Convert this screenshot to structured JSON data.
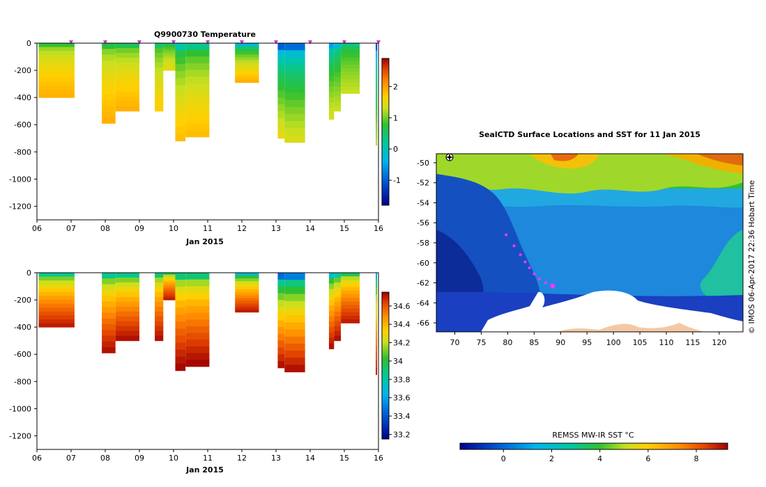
{
  "temperature_section": {
    "chart_data": {
      "type": "heatmap",
      "title": "Q9900730  Temperature",
      "xlabel": "Jan 2015",
      "x_ticks": [
        "06",
        "07",
        "08",
        "09",
        "10",
        "11",
        "12",
        "13",
        "14",
        "15",
        "16"
      ],
      "xlim": [
        6,
        16
      ],
      "y_ticks": [
        0,
        -200,
        -400,
        -600,
        -800,
        -1000,
        -1200
      ],
      "ylim": [
        -1300,
        0
      ],
      "colorbar": {
        "ticks": [
          2,
          1,
          0,
          -1
        ],
        "range": [
          -1.8,
          2.9
        ]
      },
      "profile_markers_day": [
        7.0,
        8.0,
        9.0,
        10.0,
        11.0,
        12.0,
        13.0,
        14.0,
        15.0,
        16.0
      ],
      "profiles": [
        {
          "start": 6.05,
          "end": 7.1,
          "depth": 400,
          "surface": 0.8,
          "deep": 1.9
        },
        {
          "start": 7.9,
          "end": 8.3,
          "depth": 590,
          "surface": 0.7,
          "deep": 1.9
        },
        {
          "start": 8.3,
          "end": 9.0,
          "depth": 500,
          "surface": 0.6,
          "deep": 1.9
        },
        {
          "start": 9.45,
          "end": 9.7,
          "depth": 500,
          "surface": 0.5,
          "deep": 1.7
        },
        {
          "start": 9.7,
          "end": 10.05,
          "depth": 200,
          "surface": 0.4,
          "deep": 1.5
        },
        {
          "start": 10.05,
          "end": 10.35,
          "depth": 720,
          "surface": 0.1,
          "deep": 1.8
        },
        {
          "start": 10.35,
          "end": 11.05,
          "depth": 690,
          "surface": 0.3,
          "deep": 1.8
        },
        {
          "start": 11.8,
          "end": 12.5,
          "depth": 290,
          "surface": -0.3,
          "deep": 1.9
        },
        {
          "start": 13.05,
          "end": 13.25,
          "depth": 700,
          "surface": -1.0,
          "deep": 1.5
        },
        {
          "start": 13.25,
          "end": 13.85,
          "depth": 730,
          "surface": -0.9,
          "deep": 1.4
        },
        {
          "start": 14.55,
          "end": 14.7,
          "depth": 560,
          "surface": -0.5,
          "deep": 1.4
        },
        {
          "start": 14.7,
          "end": 14.9,
          "depth": 500,
          "surface": -0.2,
          "deep": 1.3
        },
        {
          "start": 14.9,
          "end": 15.45,
          "depth": 370,
          "surface": 0.3,
          "deep": 1.3
        },
        {
          "start": 15.92,
          "end": 15.96,
          "depth": 750,
          "surface": -1.2,
          "deep": 1.2
        }
      ]
    }
  },
  "salinity_section": {
    "chart_data": {
      "type": "heatmap",
      "title": "",
      "xlabel": "Jan 2015",
      "x_ticks": [
        "06",
        "07",
        "08",
        "09",
        "10",
        "11",
        "12",
        "13",
        "14",
        "15",
        "16"
      ],
      "xlim": [
        6,
        16
      ],
      "y_ticks": [
        0,
        -200,
        -400,
        -600,
        -800,
        -1000,
        -1200
      ],
      "ylim": [
        -1300,
        0
      ],
      "colorbar": {
        "ticks": [
          34.6,
          34.4,
          34.2,
          34,
          33.8,
          33.6,
          33.4,
          33.2
        ],
        "range": [
          33.15,
          34.75
        ]
      },
      "profiles": [
        {
          "start": 6.05,
          "end": 7.1,
          "depth": 400,
          "surface": 33.85,
          "deep": 34.7
        },
        {
          "start": 7.9,
          "end": 8.3,
          "depth": 590,
          "surface": 33.85,
          "deep": 34.72
        },
        {
          "start": 8.3,
          "end": 9.0,
          "depth": 500,
          "surface": 33.85,
          "deep": 34.72
        },
        {
          "start": 9.45,
          "end": 9.7,
          "depth": 500,
          "surface": 33.9,
          "deep": 34.72
        },
        {
          "start": 9.7,
          "end": 10.05,
          "depth": 200,
          "surface": 33.95,
          "deep": 34.7
        },
        {
          "start": 10.05,
          "end": 10.35,
          "depth": 720,
          "surface": 33.9,
          "deep": 34.74
        },
        {
          "start": 10.35,
          "end": 11.05,
          "depth": 690,
          "surface": 33.9,
          "deep": 34.74
        },
        {
          "start": 11.8,
          "end": 12.5,
          "depth": 290,
          "surface": 33.7,
          "deep": 34.7
        },
        {
          "start": 13.05,
          "end": 13.25,
          "depth": 700,
          "surface": 33.45,
          "deep": 34.72
        },
        {
          "start": 13.25,
          "end": 13.85,
          "depth": 730,
          "surface": 33.5,
          "deep": 34.72
        },
        {
          "start": 14.55,
          "end": 14.7,
          "depth": 560,
          "surface": 33.7,
          "deep": 34.72
        },
        {
          "start": 14.7,
          "end": 14.9,
          "depth": 500,
          "surface": 33.8,
          "deep": 34.72
        },
        {
          "start": 14.9,
          "end": 15.45,
          "depth": 370,
          "surface": 33.95,
          "deep": 34.7
        },
        {
          "start": 15.92,
          "end": 15.96,
          "depth": 750,
          "surface": 33.6,
          "deep": 34.7
        }
      ]
    }
  },
  "map": {
    "chart_data": {
      "type": "heatmap",
      "title": "SealCTD Surface Locations and SST for 11 Jan 2015",
      "lon_ticks": [
        70,
        75,
        80,
        85,
        90,
        95,
        100,
        105,
        110,
        115,
        120
      ],
      "lat_ticks": [
        -50,
        -52,
        -54,
        -56,
        -58,
        -60,
        -62,
        -64,
        -66
      ],
      "lon_range": [
        66.5,
        124.5
      ],
      "lat_range": [
        -66.9,
        -49.1
      ],
      "seal_track": [
        {
          "lon": 79.7,
          "lat": -57.2
        },
        {
          "lon": 81.2,
          "lat": -58.3
        },
        {
          "lon": 82.4,
          "lat": -59.2
        },
        {
          "lon": 83.3,
          "lat": -59.9
        },
        {
          "lon": 84.1,
          "lat": -60.5
        },
        {
          "lon": 85.0,
          "lat": -61.1
        },
        {
          "lon": 86.0,
          "lat": -61.6
        },
        {
          "lon": 87.2,
          "lat": -62.0
        },
        {
          "lon": 88.5,
          "lat": -62.3
        }
      ],
      "colorbar": {
        "label": "REMSS MW-IR SST °C",
        "ticks": [
          0,
          2,
          4,
          6,
          8
        ],
        "range": [
          -1.8,
          9.3
        ]
      }
    }
  },
  "credit": "© IMOS 06-Apr-2017 22:36 Hobart Time"
}
